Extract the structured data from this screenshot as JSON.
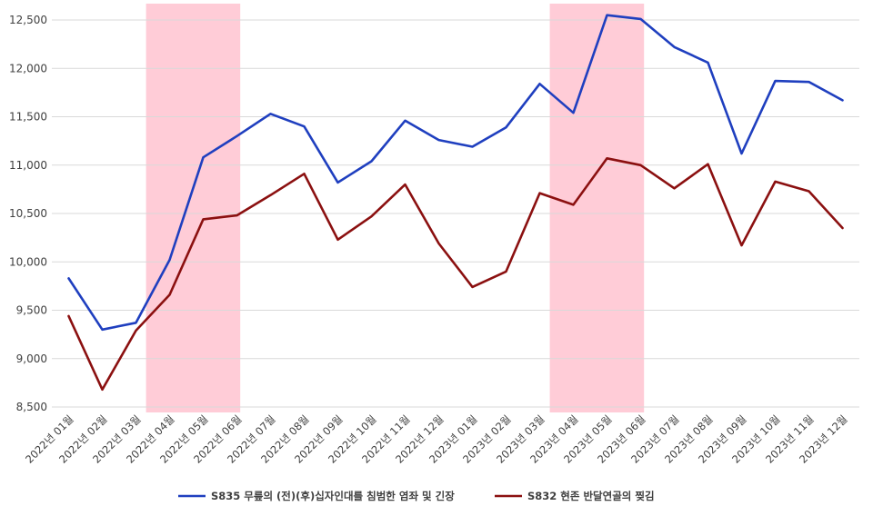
{
  "chart_data": {
    "type": "line",
    "title": "",
    "xlabel": "",
    "ylabel": "",
    "categories": [
      "2022년 01월",
      "2022년 02월",
      "2022년 03월",
      "2022년 04월",
      "2022년 05월",
      "2022년 06월",
      "2022년 07월",
      "2022년 08월",
      "2022년 09월",
      "2022년 10월",
      "2022년 11월",
      "2022년 12월",
      "2023년 01월",
      "2023년 02월",
      "2023년 03월",
      "2023년 04월",
      "2023년 05월",
      "2023년 06월",
      "2023년 07월",
      "2023년 08월",
      "2023년 09월",
      "2023년 10월",
      "2023년 11월",
      "2023년 12월"
    ],
    "ylim": [
      8500,
      12500
    ],
    "yticks": [
      8500,
      9000,
      9500,
      10000,
      10500,
      11000,
      11500,
      12000,
      12500
    ],
    "ytick_labels": [
      "8,500",
      "9,000",
      "9,500",
      "10,000",
      "10,500",
      "11,000",
      "11,500",
      "12,000",
      "12,500"
    ],
    "grid": true,
    "legend_position": "bottom",
    "series": [
      {
        "name": "S835 무릎의 (전)(후)십자인대를 침범한 염좌 및 긴장",
        "color": "#1f3fbf",
        "values": [
          9830,
          9300,
          9370,
          10020,
          11080,
          11300,
          11530,
          11400,
          10820,
          11040,
          11460,
          11260,
          11190,
          11390,
          11840,
          11540,
          12550,
          12510,
          12220,
          12060,
          11120,
          11870,
          11860,
          11670
        ]
      },
      {
        "name": "S832 현존 반달연골의 찢김",
        "color": "#8b1010",
        "values": [
          9440,
          8680,
          9290,
          9660,
          10440,
          10480,
          10690,
          10910,
          10230,
          10470,
          10800,
          10190,
          9740,
          9900,
          10710,
          10590,
          11070,
          11000,
          10760,
          11010,
          10170,
          10830,
          10730,
          10350
        ]
      }
    ],
    "highlight_ranges": [
      {
        "from": "2022년 04월",
        "to": "2022년 06월",
        "color": "#ffccd7"
      },
      {
        "from": "2023년 04월",
        "to": "2023년 06월",
        "color": "#ffccd7"
      }
    ]
  }
}
